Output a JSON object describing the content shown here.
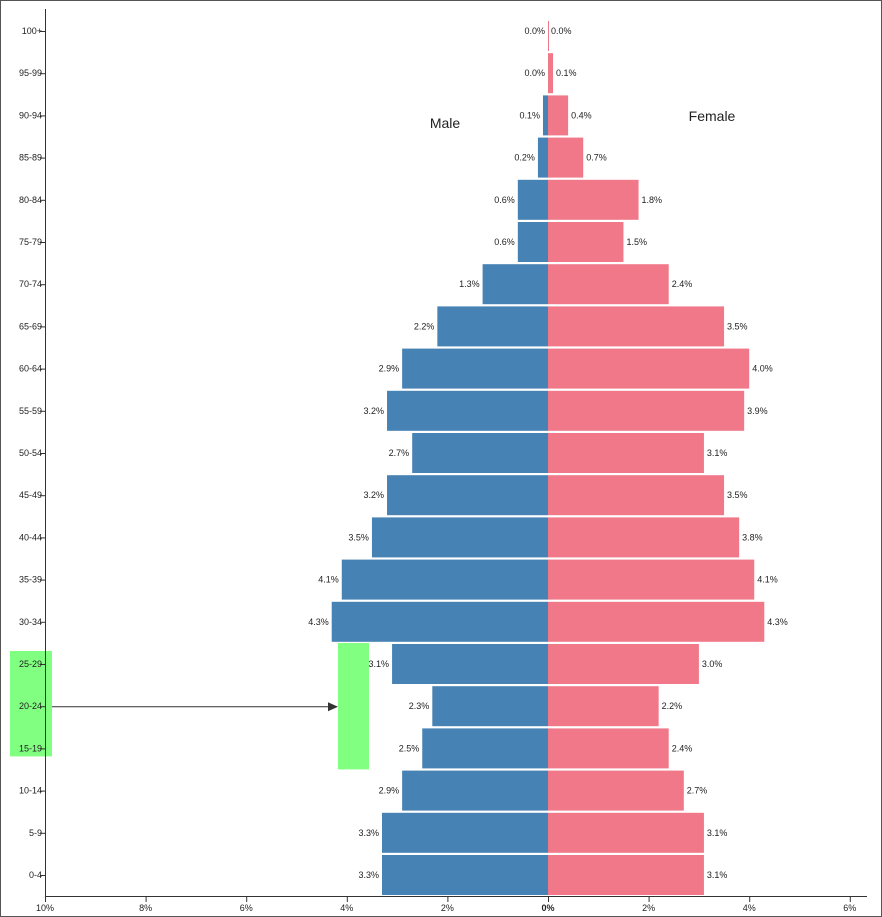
{
  "chart_data": {
    "type": "bar",
    "orientation": "horizontal-population-pyramid",
    "categories": [
      "0-4",
      "5-9",
      "10-14",
      "15-19",
      "20-24",
      "25-29",
      "30-34",
      "35-39",
      "40-44",
      "45-49",
      "50-54",
      "55-59",
      "60-64",
      "65-69",
      "70-74",
      "75-79",
      "80-84",
      "85-89",
      "90-94",
      "95-99",
      "100+"
    ],
    "series": [
      {
        "name": "Male",
        "color": "#4682b4",
        "values": [
          3.3,
          3.3,
          2.9,
          2.5,
          2.3,
          3.1,
          4.3,
          4.1,
          3.5,
          3.2,
          2.7,
          3.2,
          2.9,
          2.2,
          1.3,
          0.6,
          0.6,
          0.2,
          0.1,
          0.0,
          0.0
        ],
        "labels": [
          "3.3%",
          "3.3%",
          "2.9%",
          "2.5%",
          "2.3%",
          "3.1%",
          "4.3%",
          "4.1%",
          "3.5%",
          "3.2%",
          "2.7%",
          "3.2%",
          "2.9%",
          "2.2%",
          "1.3%",
          "0.6%",
          "0.6%",
          "0.2%",
          "0.1%",
          "0.0%",
          "0.0%"
        ]
      },
      {
        "name": "Female",
        "color": "#f07888",
        "values": [
          3.1,
          3.1,
          2.7,
          2.4,
          2.2,
          3.0,
          4.3,
          4.1,
          3.8,
          3.5,
          3.1,
          3.9,
          4.0,
          3.5,
          2.4,
          1.5,
          1.8,
          0.7,
          0.4,
          0.1,
          0.0
        ],
        "labels": [
          "3.1%",
          "3.1%",
          "2.7%",
          "2.4%",
          "2.2%",
          "3.0%",
          "4.3%",
          "4.1%",
          "3.8%",
          "3.5%",
          "3.1%",
          "3.9%",
          "4.0%",
          "3.5%",
          "2.4%",
          "1.5%",
          "1.8%",
          "0.7%",
          "0.4%",
          "0.1%",
          "0.0%"
        ]
      }
    ],
    "x_ticks": [
      "10%",
      "8%",
      "6%",
      "4%",
      "2%",
      "0%",
      "2%",
      "4%",
      "6%"
    ],
    "xlim": [
      -10,
      6
    ],
    "highlight": {
      "color": "#80ff80",
      "categories": [
        "15-19",
        "20-24",
        "25-29"
      ],
      "arrow_from": "20-24"
    }
  }
}
